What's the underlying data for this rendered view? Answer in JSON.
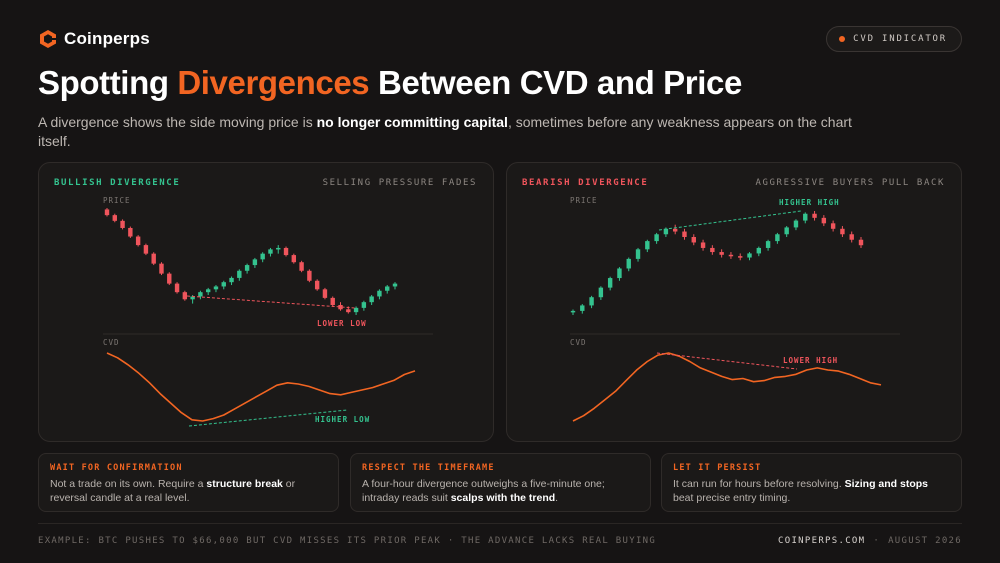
{
  "brand": {
    "name": "Coinperps"
  },
  "badge": {
    "label": "CVD INDICATOR"
  },
  "header": {
    "title_pre": "Spotting ",
    "title_accent": "Divergences",
    "title_post": " Between CVD and Price",
    "subtitle_pre": "A divergence shows the side moving price is ",
    "subtitle_bold": "no longer committing capital",
    "subtitle_post": ", sometimes before any weakness appears on the chart itself."
  },
  "colors": {
    "accent": "#f26522",
    "bull": "#34c38f",
    "bear": "#f0555c",
    "background": "#161414"
  },
  "panels": [
    {
      "tag": "BULLISH DIVERGENCE",
      "note": "SELLING PRESSURE FADES",
      "price_label": "PRICE",
      "cvd_label": "CVD",
      "price_annotation": "LOWER LOW",
      "cvd_annotation": "HIGHER LOW"
    },
    {
      "tag": "BEARISH DIVERGENCE",
      "note": "AGGRESSIVE BUYERS PULL BACK",
      "price_label": "PRICE",
      "cvd_label": "CVD",
      "price_annotation": "HIGHER HIGH",
      "cvd_annotation": "LOWER HIGH"
    }
  ],
  "chart_data": [
    {
      "type": "candlestick",
      "title": "BULLISH DIVERGENCE",
      "price_candles_ohlc": [
        [
          100,
          101,
          95,
          96
        ],
        [
          96,
          97,
          91,
          92
        ],
        [
          92,
          93,
          86,
          87
        ],
        [
          87,
          88,
          80,
          81
        ],
        [
          81,
          82,
          74,
          75
        ],
        [
          75,
          76,
          68,
          69
        ],
        [
          69,
          70,
          61,
          62
        ],
        [
          62,
          63,
          54,
          55
        ],
        [
          55,
          56,
          47,
          48
        ],
        [
          48,
          49,
          41,
          42
        ],
        [
          42,
          43,
          36,
          37
        ],
        [
          37,
          40,
          34,
          39
        ],
        [
          39,
          43,
          37,
          42
        ],
        [
          42,
          45,
          40,
          44
        ],
        [
          44,
          47,
          42,
          46
        ],
        [
          46,
          50,
          44,
          49
        ],
        [
          49,
          53,
          47,
          52
        ],
        [
          52,
          58,
          50,
          57
        ],
        [
          57,
          62,
          55,
          61
        ],
        [
          61,
          66,
          59,
          65
        ],
        [
          65,
          70,
          63,
          69
        ],
        [
          69,
          73,
          67,
          72
        ],
        [
          72,
          75,
          69,
          73
        ],
        [
          73,
          74,
          67,
          68
        ],
        [
          68,
          69,
          62,
          63
        ],
        [
          63,
          64,
          56,
          57
        ],
        [
          57,
          58,
          49,
          50
        ],
        [
          50,
          51,
          43,
          44
        ],
        [
          44,
          45,
          37,
          38
        ],
        [
          38,
          39,
          32,
          33
        ],
        [
          33,
          35,
          29,
          30
        ],
        [
          30,
          32,
          27,
          28
        ],
        [
          28,
          32,
          26,
          31
        ],
        [
          31,
          36,
          29,
          35
        ],
        [
          35,
          40,
          33,
          39
        ],
        [
          39,
          44,
          37,
          43
        ],
        [
          43,
          47,
          41,
          46
        ],
        [
          46,
          49,
          44,
          48
        ]
      ],
      "cvd": [
        70,
        66,
        60,
        53,
        45,
        36,
        28,
        20,
        14,
        13,
        15,
        18,
        23,
        28,
        33,
        38,
        43,
        45,
        44,
        42,
        39,
        36,
        35,
        37,
        39,
        41,
        44,
        47,
        52,
        55
      ],
      "annotations": [
        "LOWER LOW",
        "HIGHER LOW"
      ]
    },
    {
      "type": "candlestick",
      "title": "BEARISH DIVERGENCE",
      "price_candles_ohlc": [
        [
          10,
          12,
          8,
          11
        ],
        [
          11,
          16,
          9,
          15
        ],
        [
          15,
          22,
          13,
          21
        ],
        [
          21,
          29,
          19,
          28
        ],
        [
          28,
          36,
          26,
          35
        ],
        [
          35,
          43,
          33,
          42
        ],
        [
          42,
          50,
          40,
          49
        ],
        [
          49,
          57,
          47,
          56
        ],
        [
          56,
          63,
          54,
          62
        ],
        [
          62,
          68,
          60,
          67
        ],
        [
          67,
          72,
          65,
          71
        ],
        [
          71,
          74,
          67,
          69
        ],
        [
          69,
          71,
          63,
          65
        ],
        [
          65,
          67,
          59,
          61
        ],
        [
          61,
          63,
          55,
          57
        ],
        [
          57,
          59,
          52,
          54
        ],
        [
          54,
          56,
          50,
          52
        ],
        [
          52,
          54,
          49,
          51
        ],
        [
          51,
          53,
          48,
          50
        ],
        [
          50,
          54,
          48,
          53
        ],
        [
          53,
          58,
          51,
          57
        ],
        [
          57,
          63,
          55,
          62
        ],
        [
          62,
          68,
          60,
          67
        ],
        [
          67,
          73,
          65,
          72
        ],
        [
          72,
          78,
          70,
          77
        ],
        [
          77,
          83,
          75,
          82
        ],
        [
          82,
          84,
          77,
          79
        ],
        [
          79,
          81,
          73,
          75
        ],
        [
          75,
          77,
          69,
          71
        ],
        [
          71,
          73,
          65,
          67
        ],
        [
          67,
          69,
          61,
          63
        ],
        [
          63,
          65,
          57,
          59
        ]
      ],
      "cvd": [
        10,
        15,
        22,
        30,
        38,
        48,
        58,
        66,
        72,
        74,
        71,
        66,
        60,
        56,
        52,
        49,
        50,
        47,
        48,
        51,
        52,
        54,
        58,
        60,
        58,
        57,
        54,
        50,
        46,
        44
      ],
      "annotations": [
        "HIGHER HIGH",
        "LOWER HIGH"
      ]
    }
  ],
  "cards": [
    {
      "title": "WAIT FOR CONFIRMATION",
      "pre": "Not a trade on its own. Require a ",
      "bold": "structure break",
      "post": " or reversal candle at a real level."
    },
    {
      "title": "RESPECT THE TIMEFRAME",
      "pre": "A four-hour divergence outweighs a five-minute one; intraday reads suit ",
      "bold": "scalps with the trend",
      "post": "."
    },
    {
      "title": "LET IT PERSIST",
      "pre": "It can run for hours before resolving. ",
      "bold": "Sizing and stops",
      "post": " beat precise entry timing."
    }
  ],
  "footer": {
    "example": "EXAMPLE: BTC PUSHES TO $66,000 BUT CVD MISSES ITS PRIOR PEAK · THE ADVANCE LACKS REAL BUYING",
    "site": "COINPERPS.COM",
    "separator": "·",
    "date": "AUGUST 2026"
  }
}
